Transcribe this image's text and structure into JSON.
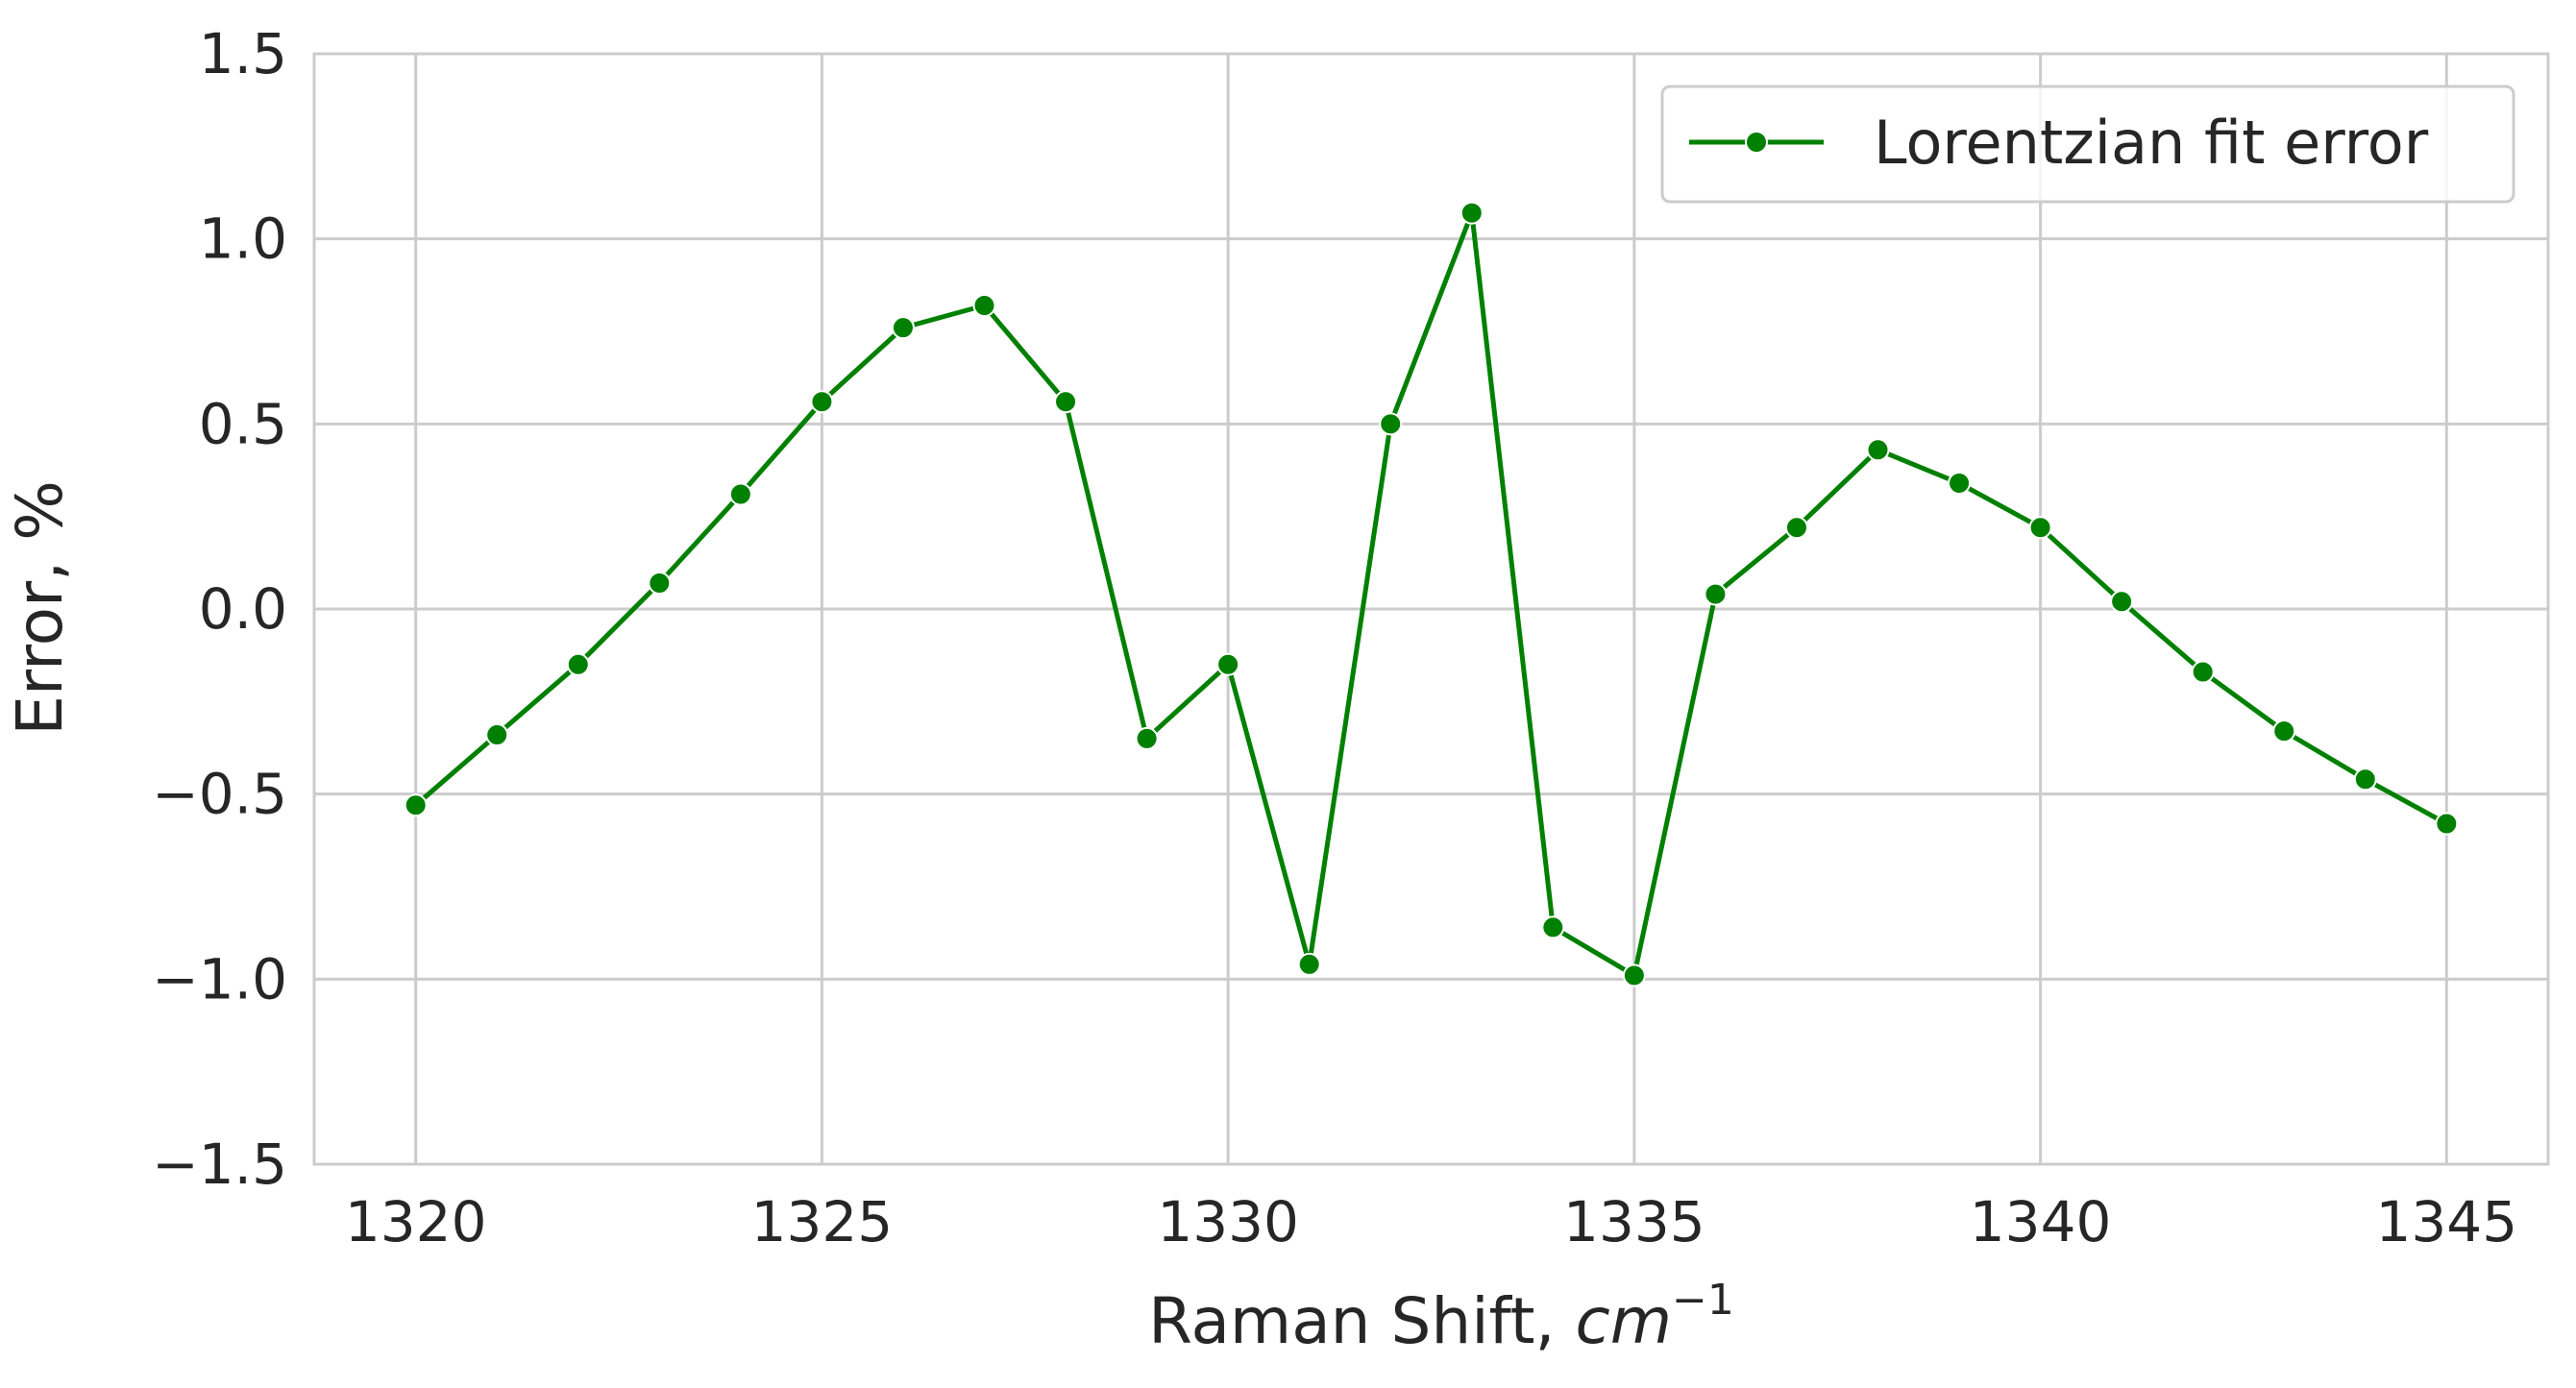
{
  "chart_data": {
    "type": "line",
    "title": "",
    "xlabel": "Raman Shift, ",
    "xlabel_math_base": "cm",
    "xlabel_math_exp": "−1",
    "ylabel": "Error, %",
    "xlim": [
      1318.75,
      1346.25
    ],
    "ylim": [
      -1.5,
      1.5
    ],
    "xticks": [
      1320,
      1325,
      1330,
      1335,
      1340,
      1345
    ],
    "yticks": [
      -1.5,
      -1.0,
      -0.5,
      0.0,
      0.5,
      1.0,
      1.5
    ],
    "ytick_labels": [
      "−1.5",
      "−1.0",
      "−0.5",
      "0.0",
      "0.5",
      "1.0",
      "1.5"
    ],
    "xtick_labels": [
      "1320",
      "1325",
      "1330",
      "1335",
      "1340",
      "1345"
    ],
    "grid": true,
    "legend_position": "top-right",
    "series": [
      {
        "name": "Lorentzian fit error",
        "color": "#008000",
        "marker": "circle",
        "x": [
          1320,
          1321,
          1322,
          1323,
          1324,
          1325,
          1326,
          1327,
          1328,
          1329,
          1330,
          1331,
          1332,
          1333,
          1334,
          1335,
          1336,
          1337,
          1338,
          1339,
          1340,
          1341,
          1342,
          1343,
          1344,
          1345
        ],
        "y": [
          -0.53,
          -0.34,
          -0.15,
          0.07,
          0.31,
          0.56,
          0.76,
          0.82,
          0.56,
          -0.35,
          -0.15,
          -0.96,
          0.5,
          1.07,
          -0.86,
          -0.99,
          0.04,
          0.22,
          0.43,
          0.34,
          0.22,
          0.02,
          -0.17,
          -0.33,
          -0.46,
          -0.58
        ]
      }
    ]
  }
}
